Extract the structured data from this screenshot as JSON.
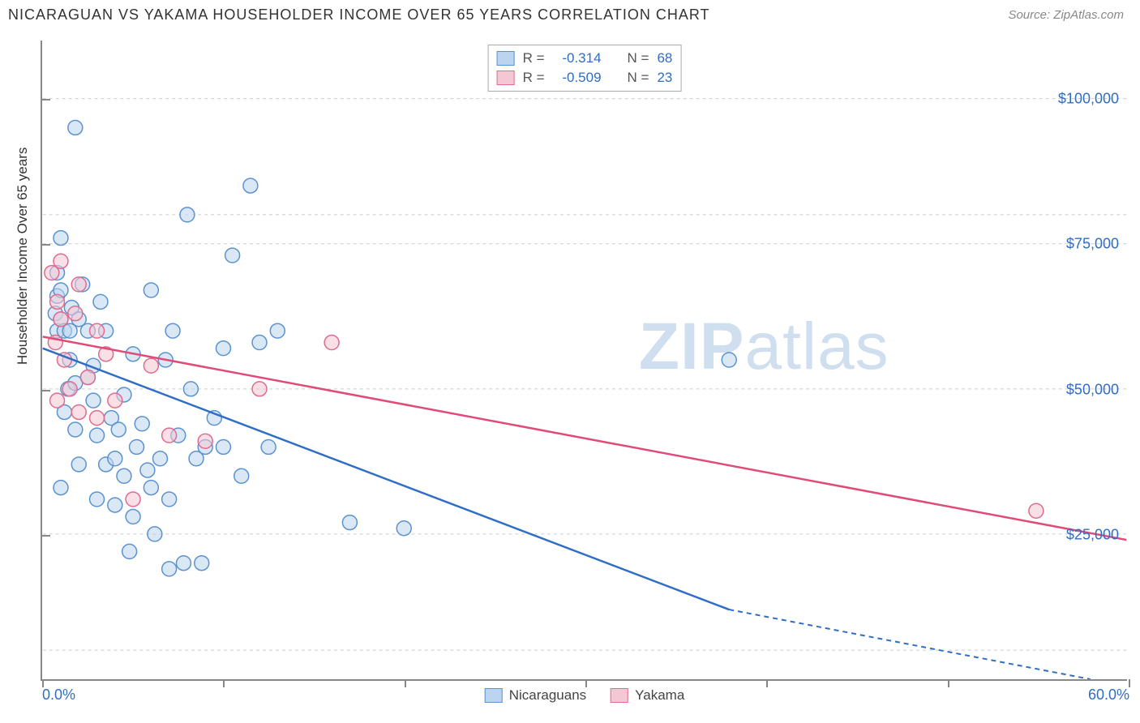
{
  "header": {
    "title": "NICARAGUAN VS YAKAMA HOUSEHOLDER INCOME OVER 65 YEARS CORRELATION CHART",
    "source": "Source: ZipAtlas.com"
  },
  "chart": {
    "type": "scatter",
    "ylabel": "Householder Income Over 65 years",
    "watermark_a": "ZIP",
    "watermark_b": "atlas",
    "xlim": [
      0,
      60
    ],
    "ylim": [
      0,
      110000
    ],
    "xtick_positions": [
      0,
      10,
      20,
      30,
      40,
      50,
      60
    ],
    "xtick_labels": {
      "0": "0.0%",
      "60": "60.0%"
    },
    "ytick_positions": [
      25000,
      50000,
      75000,
      100000
    ],
    "ytick_labels": [
      "$25,000",
      "$50,000",
      "$75,000",
      "$100,000"
    ],
    "gridline_y_extra": [
      5000,
      80000
    ],
    "grid_color": "#cccccc",
    "background_color": "#ffffff",
    "series": [
      {
        "name": "Nicaraguans",
        "color_fill": "#bcd5ee",
        "color_stroke": "#5b92d0",
        "line_color": "#2f6ec4",
        "marker_radius": 9,
        "fill_opacity": 0.55,
        "R": "-0.314",
        "N": "68",
        "regression": {
          "x1": 0,
          "y1": 57000,
          "x2": 38,
          "y2": 12000,
          "dash_to_x": 58,
          "dash_to_y": -12000
        },
        "points": [
          [
            0.7,
            63000
          ],
          [
            0.8,
            60000
          ],
          [
            0.8,
            66000
          ],
          [
            0.8,
            70000
          ],
          [
            1.0,
            33000
          ],
          [
            1.0,
            62000
          ],
          [
            1.0,
            67000
          ],
          [
            1.0,
            76000
          ],
          [
            1.2,
            60000
          ],
          [
            1.2,
            46000
          ],
          [
            1.4,
            50000
          ],
          [
            1.5,
            55000
          ],
          [
            1.5,
            60000
          ],
          [
            1.6,
            64000
          ],
          [
            1.8,
            51000
          ],
          [
            1.8,
            43000
          ],
          [
            1.8,
            95000
          ],
          [
            2.0,
            37000
          ],
          [
            2.0,
            62000
          ],
          [
            2.2,
            68000
          ],
          [
            2.5,
            52000
          ],
          [
            2.5,
            60000
          ],
          [
            2.8,
            54000
          ],
          [
            2.8,
            48000
          ],
          [
            3.0,
            31000
          ],
          [
            3.0,
            42000
          ],
          [
            3.2,
            65000
          ],
          [
            3.5,
            60000
          ],
          [
            3.5,
            37000
          ],
          [
            3.8,
            45000
          ],
          [
            4.0,
            38000
          ],
          [
            4.0,
            30000
          ],
          [
            4.2,
            43000
          ],
          [
            4.5,
            49000
          ],
          [
            4.5,
            35000
          ],
          [
            4.8,
            22000
          ],
          [
            5.0,
            56000
          ],
          [
            5.0,
            28000
          ],
          [
            5.2,
            40000
          ],
          [
            5.5,
            44000
          ],
          [
            5.8,
            36000
          ],
          [
            6.0,
            67000
          ],
          [
            6.0,
            33000
          ],
          [
            6.2,
            25000
          ],
          [
            6.5,
            38000
          ],
          [
            6.8,
            55000
          ],
          [
            7.0,
            19000
          ],
          [
            7.0,
            31000
          ],
          [
            7.2,
            60000
          ],
          [
            7.5,
            42000
          ],
          [
            7.8,
            20000
          ],
          [
            8.0,
            80000
          ],
          [
            8.2,
            50000
          ],
          [
            8.5,
            38000
          ],
          [
            8.8,
            20000
          ],
          [
            9.0,
            40000
          ],
          [
            9.5,
            45000
          ],
          [
            10.0,
            57000
          ],
          [
            10.0,
            40000
          ],
          [
            10.5,
            73000
          ],
          [
            11.0,
            35000
          ],
          [
            11.5,
            85000
          ],
          [
            12.0,
            58000
          ],
          [
            12.5,
            40000
          ],
          [
            13.0,
            60000
          ],
          [
            17.0,
            27000
          ],
          [
            20.0,
            26000
          ],
          [
            38.0,
            55000
          ]
        ]
      },
      {
        "name": "Yakama",
        "color_fill": "#f4c7d4",
        "color_stroke": "#e06b8f",
        "line_color": "#e04b78",
        "marker_radius": 9,
        "fill_opacity": 0.55,
        "R": "-0.509",
        "N": "23",
        "regression": {
          "x1": 0,
          "y1": 59000,
          "x2": 60,
          "y2": 24000
        },
        "points": [
          [
            0.5,
            70000
          ],
          [
            0.7,
            58000
          ],
          [
            0.8,
            65000
          ],
          [
            0.8,
            48000
          ],
          [
            1.0,
            72000
          ],
          [
            1.0,
            62000
          ],
          [
            1.2,
            55000
          ],
          [
            1.5,
            50000
          ],
          [
            1.8,
            63000
          ],
          [
            2.0,
            46000
          ],
          [
            2.0,
            68000
          ],
          [
            2.5,
            52000
          ],
          [
            3.0,
            45000
          ],
          [
            3.0,
            60000
          ],
          [
            3.5,
            56000
          ],
          [
            4.0,
            48000
          ],
          [
            5.0,
            31000
          ],
          [
            6.0,
            54000
          ],
          [
            7.0,
            42000
          ],
          [
            9.0,
            41000
          ],
          [
            12.0,
            50000
          ],
          [
            16.0,
            58000
          ],
          [
            55.0,
            29000
          ]
        ]
      }
    ],
    "legend_top": {
      "R_label": "R =",
      "N_label": "N ="
    },
    "legend_bottom": [
      {
        "label": "Nicaraguans",
        "fill": "#bcd5ee",
        "stroke": "#5b92d0"
      },
      {
        "label": "Yakama",
        "fill": "#f4c7d4",
        "stroke": "#e06b8f"
      }
    ]
  }
}
